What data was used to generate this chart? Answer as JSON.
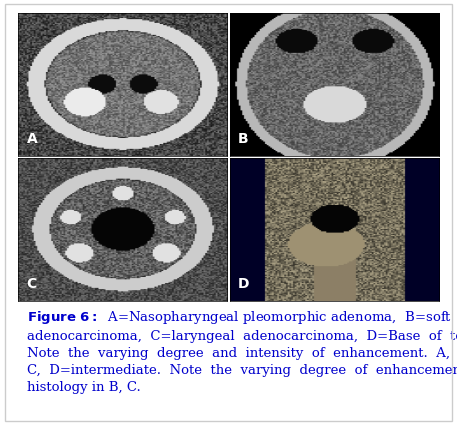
{
  "figure_title": "Figure 6:",
  "caption": "A=Nasopharyngeal pleomorphic adenoma, B=soft palate adenocarcinoma, C=laryngeal adenocarcinoma, D=Base of tongue MEC. Note the varying degree and intensity of enhancement. A, B=intense and C, D=intermediate. Note the varying degree of enhancement for the same histology in B, C.",
  "labels": [
    "A",
    "B",
    "C",
    "D"
  ],
  "background_color": "#ffffff",
  "border_color": "#cccccc",
  "caption_color": "#0000cc",
  "caption_fontsize": 9.5,
  "image_border_color": "#000000"
}
